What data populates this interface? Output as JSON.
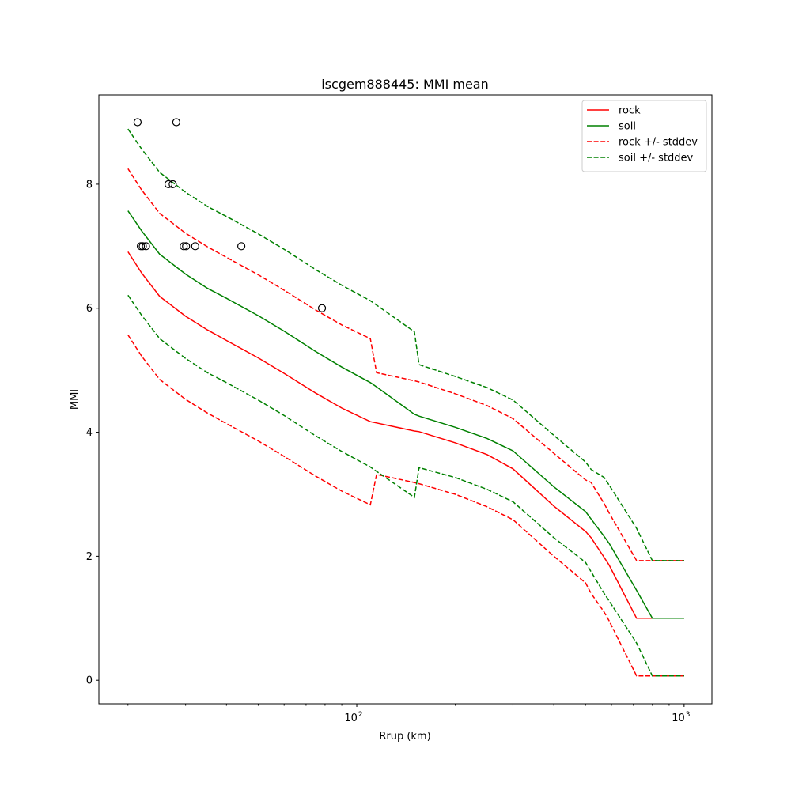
{
  "chart_data": {
    "type": "line",
    "title": "iscgem888445: MMI mean",
    "xlabel": "Rrup (km)",
    "ylabel": "MMI",
    "xscale": "log",
    "xlim": [
      16.3,
      1216
    ],
    "ylim": [
      -0.38,
      9.44
    ],
    "xticks": [
      {
        "value": 100,
        "label": "10",
        "exp": "2"
      },
      {
        "value": 1000,
        "label": "10",
        "exp": "3"
      }
    ],
    "yticks": [
      0,
      2,
      4,
      6,
      8
    ],
    "grid": false,
    "legend_position": "top-right",
    "x": [
      20,
      22,
      25,
      30,
      35,
      40,
      50,
      60,
      75,
      90,
      110,
      115,
      150,
      155,
      200,
      250,
      300,
      400,
      500,
      520,
      570,
      590,
      716,
      800,
      1000
    ],
    "series": [
      {
        "name": "rock",
        "color": "#ff0000",
        "dash": false,
        "values": [
          6.91,
          6.57,
          6.19,
          5.87,
          5.65,
          5.48,
          5.2,
          4.95,
          4.63,
          4.39,
          4.17,
          4.15,
          4.02,
          4.01,
          3.83,
          3.64,
          3.41,
          2.81,
          2.4,
          2.3,
          1.98,
          1.86,
          1.0,
          1.0,
          1.0
        ]
      },
      {
        "name": "soil",
        "color": "#008000",
        "dash": false,
        "values": [
          7.57,
          7.25,
          6.87,
          6.55,
          6.32,
          6.16,
          5.88,
          5.63,
          5.3,
          5.05,
          4.8,
          4.73,
          4.29,
          4.26,
          4.08,
          3.9,
          3.7,
          3.12,
          2.72,
          2.6,
          2.32,
          2.21,
          1.45,
          1.0,
          1.0
        ]
      },
      {
        "name": "rock +/- stddev",
        "color": "#ff0000",
        "dash": true,
        "values": [
          8.25,
          7.91,
          7.53,
          7.21,
          6.99,
          6.82,
          6.54,
          6.29,
          5.97,
          5.73,
          5.51,
          4.96,
          4.83,
          4.81,
          4.62,
          4.43,
          4.22,
          3.66,
          3.23,
          3.19,
          2.85,
          2.7,
          1.93,
          1.93,
          1.93
        ],
        "values_lower": [
          5.57,
          5.23,
          4.85,
          4.53,
          4.31,
          4.14,
          3.86,
          3.61,
          3.29,
          3.05,
          2.83,
          3.32,
          3.19,
          3.17,
          3.0,
          2.8,
          2.59,
          2.0,
          1.57,
          1.4,
          1.1,
          0.96,
          0.07,
          0.07,
          0.07
        ]
      },
      {
        "name": "soil +/- stddev",
        "color": "#008000",
        "dash": true,
        "values": [
          8.89,
          8.57,
          8.19,
          7.87,
          7.64,
          7.48,
          7.2,
          6.95,
          6.62,
          6.37,
          6.12,
          6.05,
          5.62,
          5.09,
          4.9,
          4.72,
          4.52,
          3.95,
          3.52,
          3.4,
          3.27,
          3.15,
          2.45,
          1.93,
          1.93
        ],
        "values_lower": [
          6.21,
          5.89,
          5.51,
          5.19,
          4.96,
          4.8,
          4.52,
          4.27,
          3.94,
          3.69,
          3.44,
          3.37,
          2.95,
          3.43,
          3.27,
          3.08,
          2.88,
          2.3,
          1.9,
          1.75,
          1.4,
          1.28,
          0.6,
          0.07,
          0.07
        ]
      }
    ],
    "observations": {
      "x": [
        21.4,
        28.1,
        26.6,
        27.4,
        21.9,
        22.2,
        22.7,
        29.6,
        30.1,
        32.1,
        44.4,
        78.3
      ],
      "y": [
        9,
        9,
        8,
        8,
        7,
        7,
        7,
        7,
        7,
        7,
        7,
        6
      ]
    }
  }
}
